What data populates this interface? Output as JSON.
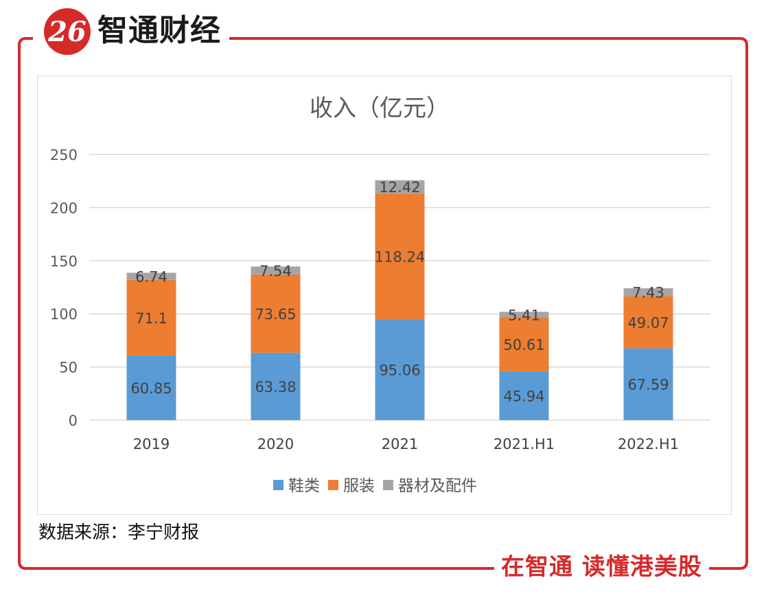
{
  "brand": {
    "logo_mark": "26",
    "name": "智通财经",
    "slogan": "在智通  读懂港美股",
    "accent_color": "#d52a2a"
  },
  "source_note": "数据来源：李宁财报",
  "chart_data": {
    "type": "bar",
    "stacked": true,
    "title": "收入（亿元）",
    "xlabel": "",
    "ylabel": "",
    "categories": [
      "2019",
      "2020",
      "2021",
      "2021.H1",
      "2022.H1"
    ],
    "series": [
      {
        "name": "鞋类",
        "color": "#5b9bd5",
        "values": [
          60.85,
          63.38,
          95.06,
          45.94,
          67.59
        ]
      },
      {
        "name": "服装",
        "color": "#ed7d31",
        "values": [
          71.1,
          73.65,
          118.24,
          50.61,
          49.07
        ]
      },
      {
        "name": "器材及配件",
        "color": "#a5a5a5",
        "values": [
          6.74,
          7.54,
          12.42,
          5.41,
          7.43
        ]
      }
    ],
    "ylim": [
      0,
      250
    ],
    "yticks": [
      0,
      50,
      100,
      150,
      200,
      250
    ],
    "grid": true,
    "legend": "bottom"
  }
}
